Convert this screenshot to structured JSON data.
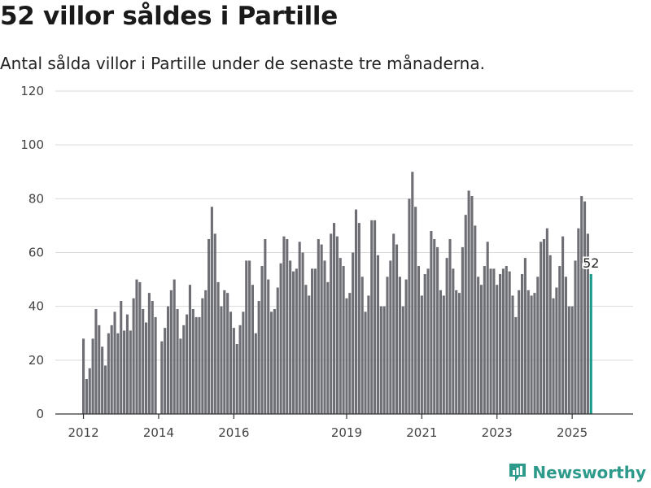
{
  "title": "52 villor såldes i Partille",
  "subtitle": "Antal sålda villor i Partille under de senaste tre månaderna.",
  "brand": {
    "name": "Newsworthy",
    "color": "#2e9a8b",
    "icon": "bar-chart-badge-icon"
  },
  "colors": {
    "bar": "#6e6e75",
    "highlight": "#1a9a8c"
  },
  "chart_data": {
    "type": "bar",
    "ylim": [
      0,
      120
    ],
    "yticks": [
      0,
      20,
      40,
      60,
      80,
      100,
      120
    ],
    "xticks": [
      {
        "label": "2012",
        "x": "2012-01"
      },
      {
        "label": "2014",
        "x": "2014-01"
      },
      {
        "label": "2016",
        "x": "2016-01"
      },
      {
        "label": "2019",
        "x": "2019-01"
      },
      {
        "label": "2021",
        "x": "2021-01"
      },
      {
        "label": "2023",
        "x": "2023-01"
      },
      {
        "label": "2025",
        "x": "2025-01"
      }
    ],
    "x_start": "2012-01",
    "grid": true,
    "highlight_label": "52",
    "values": [
      28,
      13,
      17,
      28,
      39,
      33,
      25,
      18,
      30,
      33,
      38,
      30,
      42,
      31,
      37,
      31,
      43,
      50,
      49,
      39,
      34,
      45,
      42,
      36,
      0,
      27,
      32,
      40,
      46,
      50,
      39,
      28,
      33,
      37,
      48,
      39,
      36,
      36,
      43,
      46,
      65,
      77,
      67,
      49,
      40,
      46,
      45,
      38,
      32,
      26,
      33,
      38,
      57,
      57,
      48,
      30,
      42,
      55,
      65,
      50,
      38,
      39,
      47,
      56,
      66,
      65,
      57,
      53,
      54,
      64,
      60,
      48,
      44,
      54,
      54,
      65,
      63,
      57,
      49,
      67,
      71,
      66,
      58,
      55,
      43,
      45,
      60,
      76,
      71,
      51,
      38,
      44,
      72,
      72,
      59,
      40,
      40,
      51,
      57,
      67,
      63,
      51,
      40,
      50,
      80,
      90,
      77,
      55,
      44,
      52,
      54,
      68,
      65,
      62,
      46,
      44,
      58,
      65,
      54,
      46,
      45,
      62,
      74,
      83,
      81,
      70,
      51,
      48,
      55,
      64,
      54,
      54,
      48,
      52,
      54,
      55,
      53,
      44,
      36,
      46,
      52,
      58,
      46,
      44,
      45,
      51,
      64,
      65,
      69,
      59,
      43,
      47,
      55,
      66,
      51,
      40,
      40,
      57,
      69,
      81,
      79,
      67,
      52
    ]
  }
}
